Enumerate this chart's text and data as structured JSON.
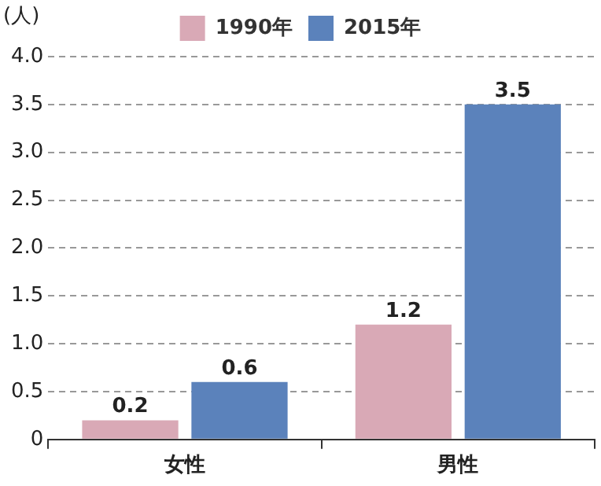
{
  "chart_data": {
    "type": "bar",
    "ylabel": "(人)",
    "categories": [
      "女性",
      "男性"
    ],
    "series": [
      {
        "name": "1990年",
        "color": "#d9a9b6",
        "values": [
          0.2,
          1.2
        ]
      },
      {
        "name": "2015年",
        "color": "#5b82bb",
        "values": [
          0.6,
          3.5
        ]
      }
    ],
    "ylim": [
      0,
      4
    ],
    "yticks": [
      0,
      0.5,
      {
        "value": 1,
        "label": "1.0"
      },
      1.5,
      {
        "value": 2,
        "label": "2.0"
      },
      2.5,
      {
        "value": 3,
        "label": "3.0"
      },
      3.5,
      {
        "value": 4,
        "label": "4.0"
      }
    ],
    "grid": "y",
    "legend": "top",
    "data_labels": true
  }
}
